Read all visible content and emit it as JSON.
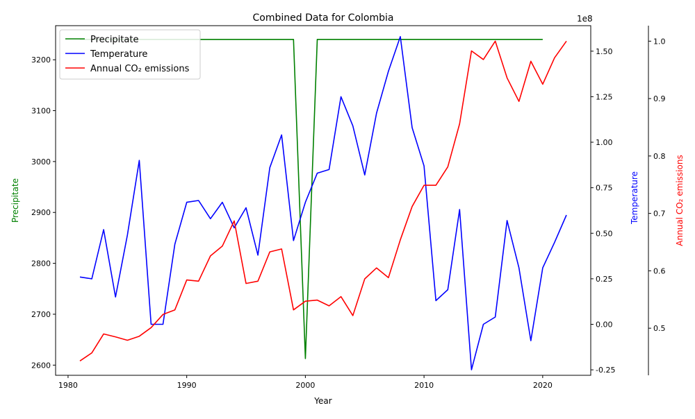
{
  "chart_data": {
    "type": "line",
    "title": "Combined Data for Colombia",
    "xlabel": "Year",
    "x_ticks": [
      1980,
      1990,
      2000,
      2010,
      2020
    ],
    "legend_position": "upper-left",
    "axes": {
      "left": {
        "label": "Precipitate",
        "color": "#008000",
        "ylim": [
          2580,
          3267
        ],
        "ticks": [
          2600,
          2700,
          2800,
          2900,
          3000,
          3100,
          3200
        ]
      },
      "right1": {
        "label": "Temperature",
        "color": "#0000ff",
        "ylim": [
          -0.28,
          1.64
        ],
        "ticks": [
          -0.25,
          0.0,
          0.25,
          0.5,
          0.75,
          1.0,
          1.25,
          1.5
        ],
        "tick_labels": [
          "-0.25",
          "0.00",
          "0.25",
          "0.50",
          "0.75",
          "1.00",
          "1.25",
          "1.50"
        ],
        "offset_text": "1e8"
      },
      "right2": {
        "label": "Annual CO₂ emissions",
        "color": "#ff0000",
        "ylim": [
          0.418,
          1.027
        ],
        "ticks": [
          0.5,
          0.6,
          0.7,
          0.8,
          0.9,
          1.0
        ],
        "tick_labels": [
          "0.5",
          "0.6",
          "0.7",
          "0.8",
          "0.9",
          "1.0"
        ]
      }
    },
    "series": [
      {
        "name": "Precipitate",
        "axis": "left",
        "color": "#008000",
        "x": [
          1981,
          1982,
          1983,
          1984,
          1985,
          1986,
          1987,
          1988,
          1989,
          1990,
          1991,
          1992,
          1993,
          1994,
          1995,
          1996,
          1997,
          1998,
          1999,
          2000,
          2001,
          2002,
          2003,
          2004,
          2005,
          2006,
          2007,
          2008,
          2009,
          2010,
          2011,
          2012,
          2013,
          2014,
          2015,
          2016,
          2017,
          2018,
          2019,
          2020
        ],
        "values": [
          3240,
          3240,
          3240,
          3240,
          3240,
          3240,
          3240,
          3240,
          3240,
          3240,
          3240,
          3240,
          3240,
          3240,
          3240,
          3240,
          3240,
          3240,
          3240,
          2613,
          3240,
          3240,
          3240,
          3240,
          3240,
          3240,
          3240,
          3240,
          3240,
          3240,
          3240,
          3240,
          3240,
          3240,
          3240,
          3240,
          3240,
          3240,
          3240,
          3240
        ]
      },
      {
        "name": "Temperature",
        "axis": "right1",
        "color": "#0000ff",
        "x": [
          1981,
          1982,
          1983,
          1984,
          1985,
          1986,
          1987,
          1988,
          1989,
          1990,
          1991,
          1992,
          1993,
          1994,
          1995,
          1996,
          1997,
          1998,
          1999,
          2000,
          2001,
          2002,
          2003,
          2004,
          2005,
          2006,
          2007,
          2008,
          2009,
          2010,
          2011,
          2012,
          2013,
          2014,
          2015,
          2016,
          2017,
          2018,
          2019,
          2020,
          2021,
          2022
        ],
        "values": [
          0.26,
          0.25,
          0.52,
          0.15,
          0.49,
          0.9,
          0.0,
          0.0,
          0.44,
          0.67,
          0.68,
          0.58,
          0.67,
          0.53,
          0.64,
          0.38,
          0.86,
          1.04,
          0.46,
          0.67,
          0.83,
          0.85,
          1.25,
          1.09,
          0.82,
          1.16,
          1.39,
          1.58,
          1.08,
          0.87,
          0.13,
          0.19,
          0.63,
          -0.25,
          0.0,
          0.04,
          0.57,
          0.31,
          -0.09,
          0.31,
          0.45,
          0.6
        ]
      },
      {
        "name": "Annual CO₂ emissions",
        "axis": "right2",
        "color": "#ff0000",
        "x": [
          1981,
          1982,
          1983,
          1984,
          1985,
          1986,
          1987,
          1988,
          1989,
          1990,
          1991,
          1992,
          1993,
          1994,
          1995,
          1996,
          1997,
          1998,
          1999,
          2000,
          2001,
          2002,
          2003,
          2004,
          2005,
          2006,
          2007,
          2008,
          2009,
          2010,
          2011,
          2012,
          2013,
          2014,
          2015,
          2016,
          2017,
          2018,
          2019,
          2020,
          2021,
          2022
        ],
        "values": [
          0.443,
          0.457,
          0.49,
          0.485,
          0.479,
          0.486,
          0.501,
          0.524,
          0.532,
          0.584,
          0.582,
          0.626,
          0.643,
          0.687,
          0.578,
          0.582,
          0.633,
          0.638,
          0.532,
          0.547,
          0.549,
          0.539,
          0.555,
          0.522,
          0.586,
          0.605,
          0.588,
          0.654,
          0.712,
          0.749,
          0.749,
          0.781,
          0.856,
          0.983,
          0.968,
          1.0,
          0.936,
          0.895,
          0.965,
          0.925,
          0.971,
          1.0
        ]
      }
    ]
  }
}
